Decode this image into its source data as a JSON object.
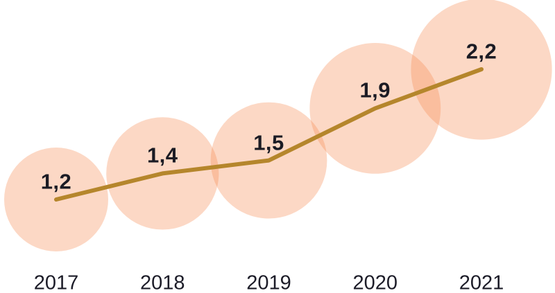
{
  "chart_data": {
    "type": "line",
    "subtype": "line-with-proportional-bubbles",
    "title": "",
    "xlabel": "",
    "ylabel": "",
    "categories": [
      "2017",
      "2018",
      "2019",
      "2020",
      "2021"
    ],
    "values": [
      1.2,
      1.4,
      1.5,
      1.9,
      2.2
    ],
    "value_labels": [
      "1,2",
      "1,4",
      "1,5",
      "1,9",
      "2,2"
    ],
    "series": [
      {
        "name": "value",
        "values": [
          1.2,
          1.4,
          1.5,
          1.9,
          2.2
        ]
      }
    ],
    "ylim": [
      1.0,
      2.4
    ],
    "grid": false,
    "legend": "none",
    "axes_visible": false,
    "decimal_style": "comma",
    "bubble_size_encodes": "value",
    "colors": {
      "bubble_fill": "#f68950",
      "bubble_opacity": 0.33,
      "line": "#b5862c",
      "value_label": "#1b1b24",
      "year_label": "#1c1c28",
      "background": "#ffffff"
    }
  }
}
